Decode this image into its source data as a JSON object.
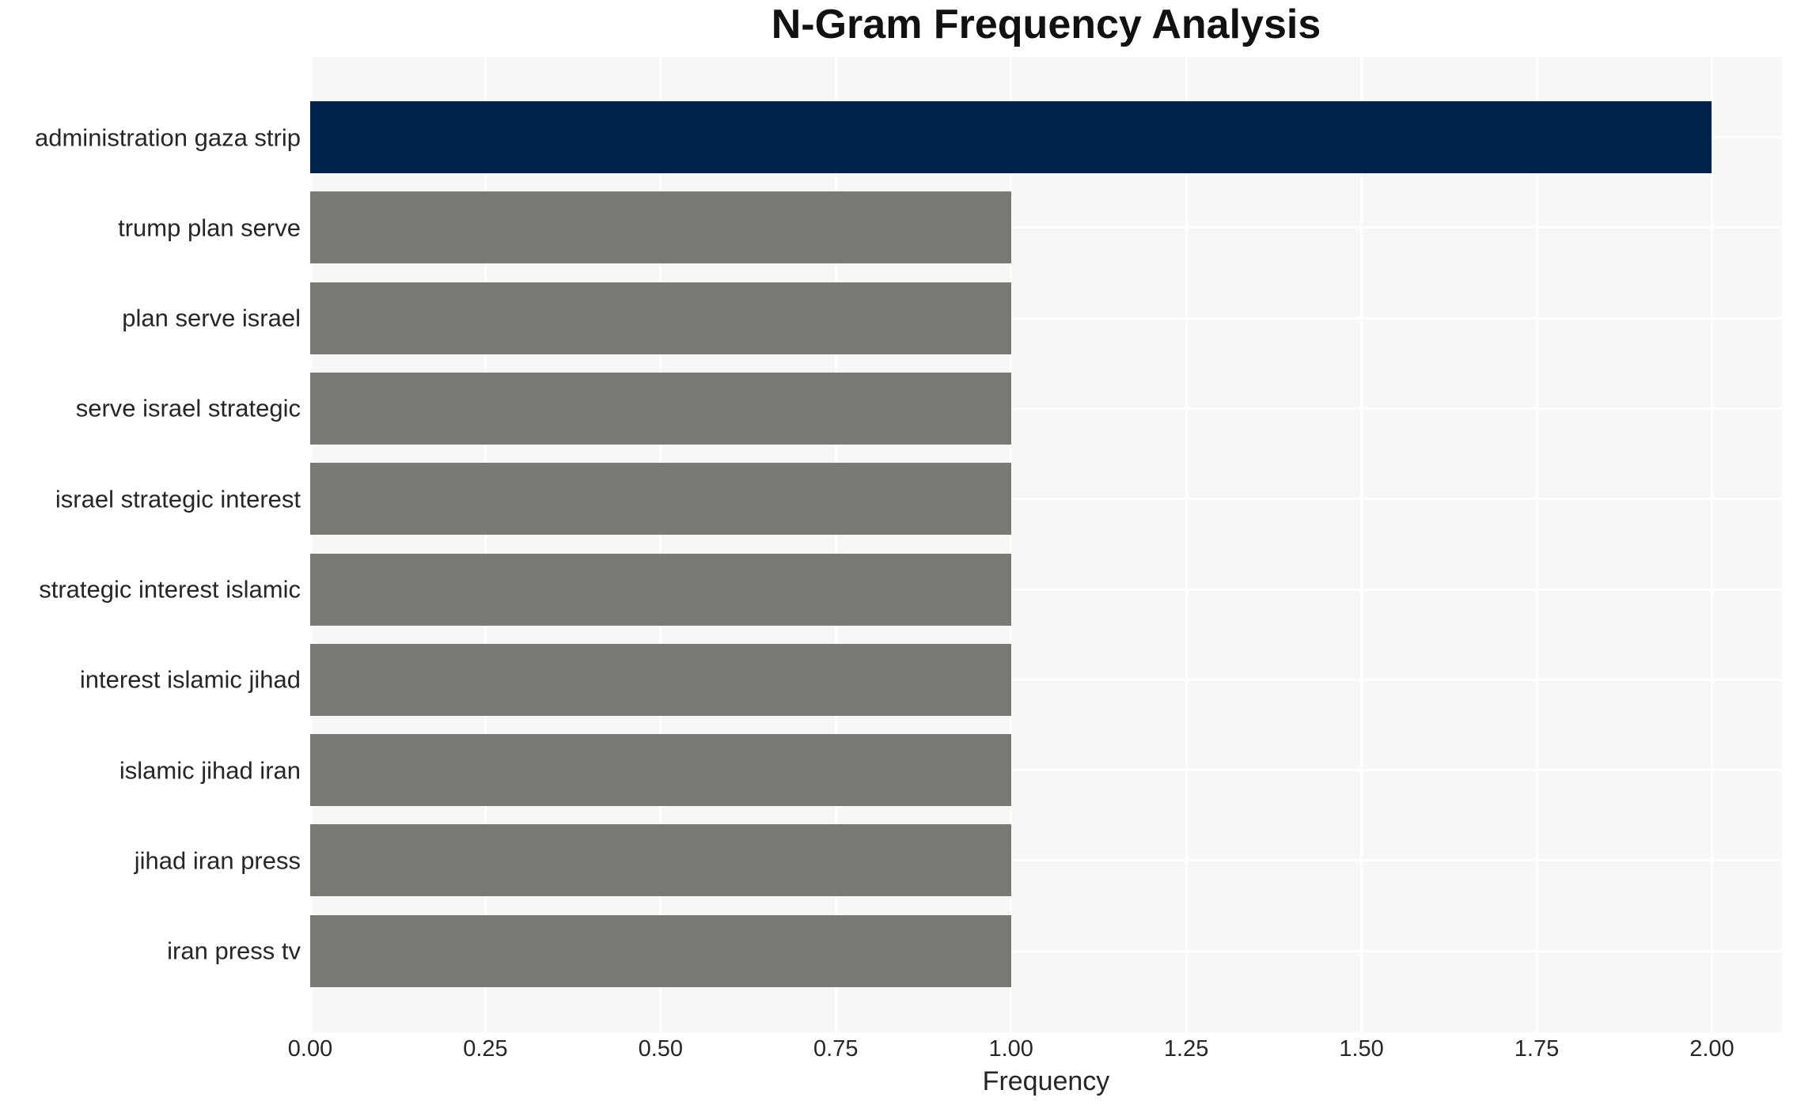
{
  "chart_data": {
    "type": "bar",
    "orientation": "horizontal",
    "title": "N-Gram Frequency Analysis",
    "xlabel": "Frequency",
    "ylabel": "",
    "categories": [
      "administration gaza strip",
      "trump plan serve",
      "plan serve israel",
      "serve israel strategic",
      "israel strategic interest",
      "strategic interest islamic",
      "interest islamic jihad",
      "islamic jihad iran",
      "jihad iran press",
      "iran press tv"
    ],
    "values": [
      2.0,
      1.0,
      1.0,
      1.0,
      1.0,
      1.0,
      1.0,
      1.0,
      1.0,
      1.0
    ],
    "bar_colors": [
      "#00234E",
      "#7A7974",
      "#7A7974",
      "#7A7974",
      "#7A7974",
      "#7A7974",
      "#7A7974",
      "#7A7974",
      "#7A7974",
      "#7A7974"
    ],
    "xlim": [
      0,
      2.1
    ],
    "xticks": [
      0.0,
      0.25,
      0.5,
      0.75,
      1.0,
      1.25,
      1.5,
      1.75,
      2.0
    ],
    "xtick_labels": [
      "0.00",
      "0.25",
      "0.50",
      "0.75",
      "1.00",
      "1.25",
      "1.50",
      "1.75",
      "2.00"
    ],
    "grid": true,
    "legend": false,
    "colors": {
      "highlight_bar": "#00234E",
      "default_bar": "#7A7974",
      "plot_background": "#F7F7F7",
      "gridline": "#FFFFFF",
      "title_text": "#111111",
      "label_text": "#262626",
      "figure_background": "#FFFFFF"
    }
  }
}
